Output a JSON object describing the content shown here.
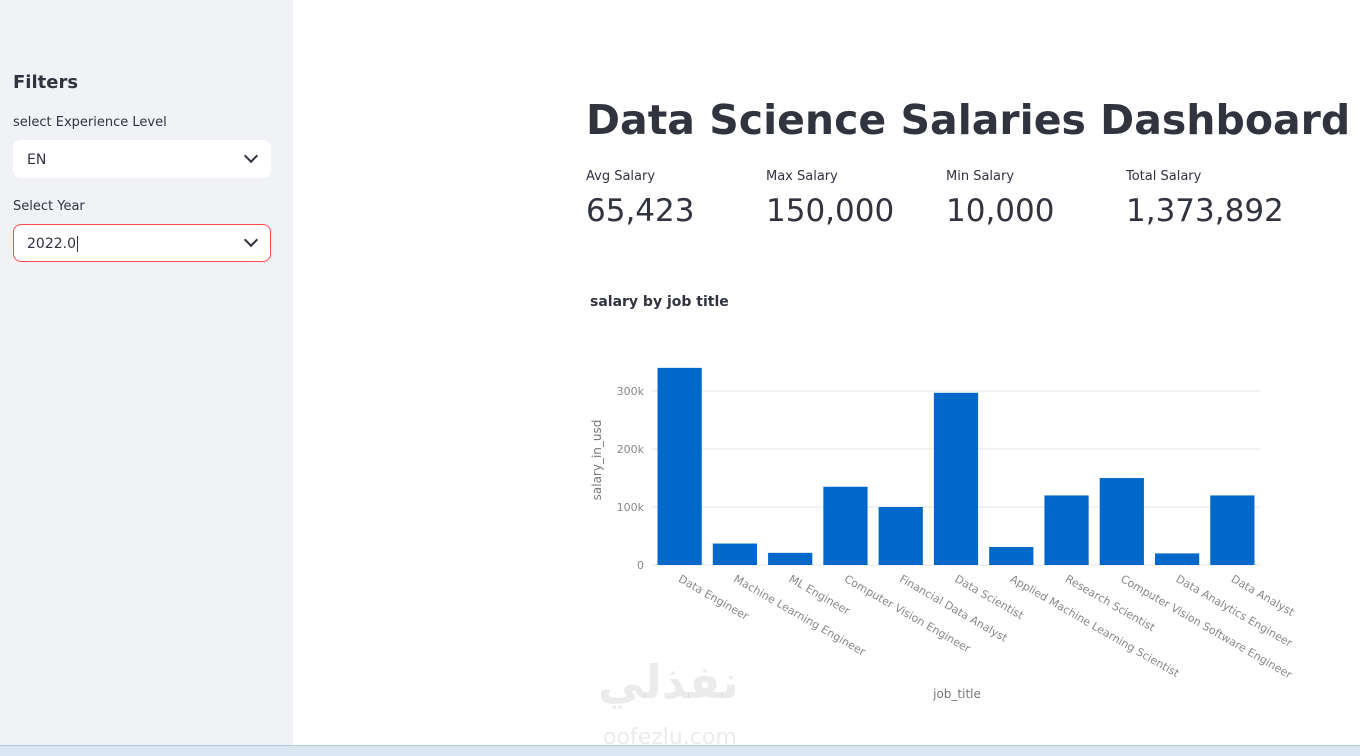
{
  "sidebar": {
    "title": "Filters",
    "filters": [
      {
        "label": "select Experience Level",
        "value": "EN"
      },
      {
        "label": "Select Year",
        "value": "2022.0"
      }
    ]
  },
  "header": {
    "title": "Data Science Salaries Dashboard"
  },
  "metrics": [
    {
      "label": "Avg Salary",
      "value": "65,423"
    },
    {
      "label": "Max Salary",
      "value": "150,000"
    },
    {
      "label": "Min Salary",
      "value": "10,000"
    },
    {
      "label": "Total Salary",
      "value": "1,373,892"
    }
  ],
  "chart_data": {
    "type": "bar",
    "title": "salary by job title",
    "x_label": "job_title",
    "y_label": "salary_in_usd",
    "categories": [
      "Data Engineer",
      "Machine Learning Engineer",
      "ML Engineer",
      "Computer Vision Engineer",
      "Financial Data Analyst",
      "Data Scientist",
      "Applied Machine Learning Scientist",
      "Research Scientist",
      "Computer Vision Software Engineer",
      "Data Analytics Engineer",
      "Data Analyst"
    ],
    "values": [
      340000,
      37000,
      21000,
      135000,
      100000,
      297000,
      31000,
      120000,
      150000,
      20000,
      120000
    ],
    "color": "#0068c9",
    "ylim": [
      0,
      357000
    ],
    "yticks": [
      0,
      {
        "value": 100000,
        "label": "100k"
      },
      {
        "value": 200000,
        "label": "200k"
      },
      {
        "value": 300000,
        "label": "300k"
      }
    ],
    "grid": true
  },
  "watermark": {
    "brand": "نفذلي",
    "url": "oofezlu.com"
  }
}
